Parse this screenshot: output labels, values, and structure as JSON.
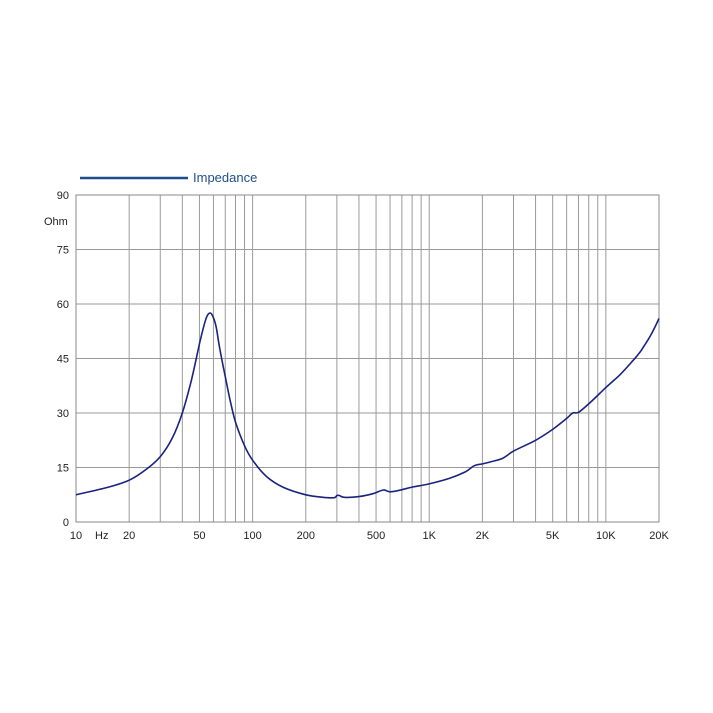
{
  "chart_data": {
    "type": "line",
    "x_scale": "log",
    "xlim": [
      10,
      20000
    ],
    "ylim": [
      0,
      90
    ],
    "grid": true,
    "legend": {
      "position": "top-left",
      "entries": [
        "Impedance"
      ]
    },
    "y_unit_label": "Ohm",
    "x_unit_label": "Hz",
    "x_ticks": [
      {
        "value": 10,
        "label": "10"
      },
      {
        "value": 20,
        "label": "20"
      },
      {
        "value": 50,
        "label": "50"
      },
      {
        "value": 100,
        "label": "100"
      },
      {
        "value": 200,
        "label": "200"
      },
      {
        "value": 500,
        "label": "500"
      },
      {
        "value": 1000,
        "label": "1K"
      },
      {
        "value": 2000,
        "label": "2K"
      },
      {
        "value": 5000,
        "label": "5K"
      },
      {
        "value": 10000,
        "label": "10K"
      },
      {
        "value": 20000,
        "label": "20K"
      }
    ],
    "y_ticks": [
      {
        "value": 0,
        "label": "0"
      },
      {
        "value": 15,
        "label": "15"
      },
      {
        "value": 30,
        "label": "30"
      },
      {
        "value": 45,
        "label": "45"
      },
      {
        "value": 60,
        "label": "60"
      },
      {
        "value": 75,
        "label": "75"
      },
      {
        "value": 90,
        "label": "90"
      }
    ],
    "series": [
      {
        "name": "Impedance",
        "color": "#1a237e",
        "points": [
          [
            10,
            7.5
          ],
          [
            15,
            9.5
          ],
          [
            20,
            11.5
          ],
          [
            25,
            14.5
          ],
          [
            30,
            18
          ],
          [
            35,
            23
          ],
          [
            40,
            30
          ],
          [
            45,
            39
          ],
          [
            50,
            49
          ],
          [
            53,
            54
          ],
          [
            55,
            56.5
          ],
          [
            57,
            57.5
          ],
          [
            59,
            57
          ],
          [
            62,
            54
          ],
          [
            65,
            48
          ],
          [
            70,
            40
          ],
          [
            75,
            33
          ],
          [
            80,
            27.5
          ],
          [
            90,
            21
          ],
          [
            100,
            17
          ],
          [
            120,
            12.5
          ],
          [
            150,
            9.5
          ],
          [
            200,
            7.5
          ],
          [
            250,
            6.8
          ],
          [
            290,
            6.7
          ],
          [
            300,
            7.3
          ],
          [
            310,
            7.3
          ],
          [
            330,
            6.8
          ],
          [
            400,
            7
          ],
          [
            480,
            7.8
          ],
          [
            550,
            8.8
          ],
          [
            600,
            8.3
          ],
          [
            700,
            8.9
          ],
          [
            800,
            9.6
          ],
          [
            1000,
            10.5
          ],
          [
            1300,
            12
          ],
          [
            1600,
            13.8
          ],
          [
            1800,
            15.5
          ],
          [
            2000,
            16
          ],
          [
            2200,
            16.5
          ],
          [
            2600,
            17.5
          ],
          [
            3000,
            19.5
          ],
          [
            4000,
            22.5
          ],
          [
            5000,
            25.5
          ],
          [
            6000,
            28.5
          ],
          [
            6500,
            30
          ],
          [
            7000,
            30.2
          ],
          [
            8000,
            32.5
          ],
          [
            10000,
            37
          ],
          [
            12000,
            40.5
          ],
          [
            14000,
            44
          ],
          [
            15000,
            45.7
          ],
          [
            16000,
            47.5
          ],
          [
            18000,
            51.5
          ],
          [
            20000,
            56
          ]
        ]
      }
    ]
  }
}
